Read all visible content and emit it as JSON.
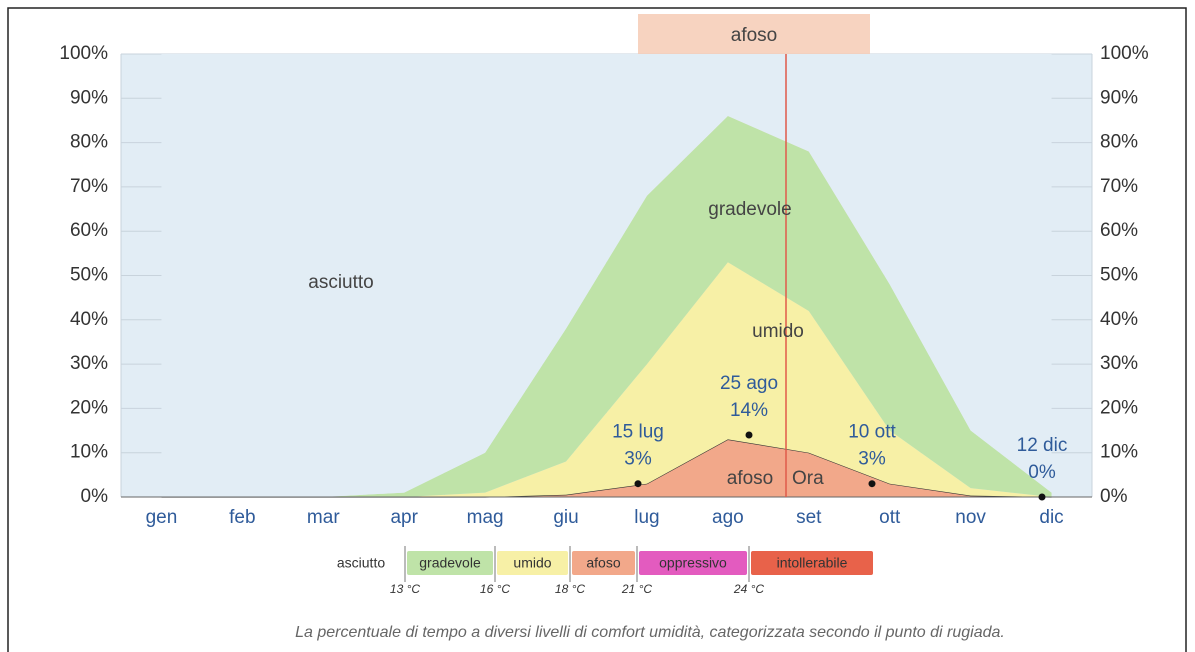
{
  "chart_data": {
    "type": "stacked-area",
    "categories": [
      "gen",
      "feb",
      "mar",
      "apr",
      "mag",
      "giu",
      "lug",
      "ago",
      "set",
      "ott",
      "nov",
      "dic"
    ],
    "series": [
      {
        "name": "afoso",
        "color": "#f2a88a",
        "values": [
          0,
          0,
          0,
          0,
          0,
          0.5,
          3,
          13,
          10,
          3,
          0.3,
          0
        ]
      },
      {
        "name": "umido",
        "color": "#f7f0a6",
        "values": [
          0,
          0,
          0,
          0,
          1,
          7.5,
          27,
          40,
          32,
          12,
          1.7,
          0
        ]
      },
      {
        "name": "gradevole",
        "color": "#bfe3a8",
        "values": [
          0,
          0,
          0,
          1,
          9,
          30,
          38,
          33,
          36,
          33,
          13,
          1
        ]
      },
      {
        "name": "asciutto",
        "color": "#e2edf5",
        "values": [
          100,
          100,
          100,
          99,
          90,
          62,
          32,
          14,
          22,
          52,
          85,
          99
        ]
      }
    ],
    "ylim": [
      0,
      100
    ],
    "yticks": [
      {
        "value": 0,
        "label": "0%"
      },
      {
        "value": 10,
        "label": "10%"
      },
      {
        "value": 20,
        "label": "20%"
      },
      {
        "value": 30,
        "label": "30%"
      },
      {
        "value": 40,
        "label": "40%"
      },
      {
        "value": 50,
        "label": "50%"
      },
      {
        "value": 60,
        "label": "60%"
      },
      {
        "value": 70,
        "label": "70%"
      },
      {
        "value": 80,
        "label": "80%"
      },
      {
        "value": 90,
        "label": "90%"
      },
      {
        "value": 100,
        "label": "100%"
      }
    ],
    "grid": true,
    "highlight_label": "afoso",
    "now_label": "Ora",
    "annotations": [
      {
        "date": "15 lug",
        "value": 3,
        "label": "3%"
      },
      {
        "date": "25 ago",
        "value": 14,
        "label": "14%"
      },
      {
        "date": "10 ott",
        "value": 3,
        "label": "3%"
      },
      {
        "date": "12 dic",
        "value": 0,
        "label": "0%"
      }
    ],
    "legend_extra": [
      {
        "name": "oppressivo",
        "color": "#e35bbf"
      },
      {
        "name": "intollerabile",
        "color": "#e8624a"
      }
    ],
    "thresholds": [
      "13 °C",
      "16 °C",
      "18 °C",
      "21 °C",
      "24 °C"
    ],
    "caption": "La percentuale di tempo a diversi livelli di comfort umidità, categorizzata secondo il punto di rugiada."
  }
}
